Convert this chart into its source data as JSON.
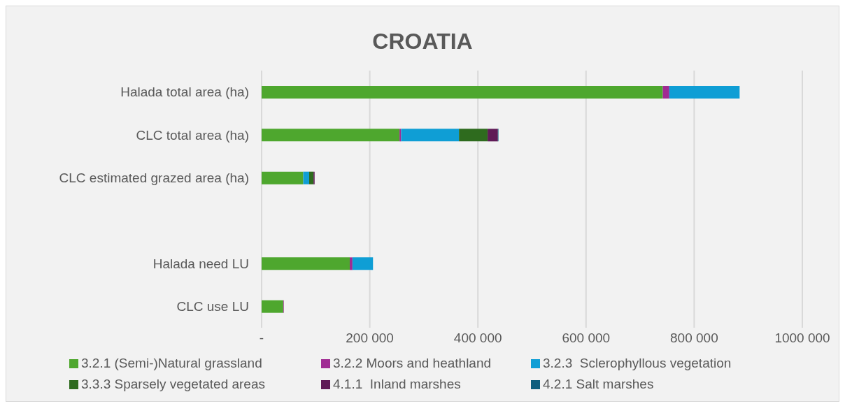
{
  "chart_data": {
    "type": "bar",
    "orientation": "horizontal",
    "stacked": true,
    "title": "CROATIA",
    "categories": [
      "Halada total area (ha)",
      "CLC total area (ha)",
      "CLC estimated grazed area (ha)",
      null,
      "Halada need LU",
      "CLC use LU"
    ],
    "series": [
      {
        "name": "3.2.1 (Semi-)Natural grassland",
        "color": "#4ea72e",
        "values": [
          742000,
          255000,
          77000,
          null,
          163000,
          40000
        ]
      },
      {
        "name": "3.2.2 Moors and heathland",
        "color": "#a02b93",
        "values": [
          12000,
          3000,
          0,
          null,
          5000,
          1000
        ]
      },
      {
        "name": "3.2.3  Sclerophyllous vegetation",
        "color": "#0f9ed5",
        "values": [
          130000,
          107000,
          11000,
          null,
          38000,
          0
        ]
      },
      {
        "name": "3.3.3 Sparsely vegetated areas",
        "color": "#2e6b1e",
        "values": [
          0,
          53000,
          8000,
          null,
          0,
          0
        ]
      },
      {
        "name": "4.1.1  Inland marshes",
        "color": "#5f1a56",
        "values": [
          0,
          19000,
          2000,
          null,
          0,
          0
        ]
      },
      {
        "name": "4.2.1 Salt marshes",
        "color": "#0e5e7e",
        "values": [
          0,
          1000,
          0,
          null,
          0,
          0
        ]
      }
    ],
    "xlim": [
      0,
      1000000
    ],
    "xticks": [
      {
        "value": 0,
        "label": "-"
      },
      {
        "value": 200000,
        "label": "200 000"
      },
      {
        "value": 400000,
        "label": "400 000"
      },
      {
        "value": 600000,
        "label": "600 000"
      },
      {
        "value": 800000,
        "label": "800 000"
      },
      {
        "value": 1000000,
        "label": "1000 000"
      }
    ],
    "grid": "x",
    "legend": "bottom"
  }
}
